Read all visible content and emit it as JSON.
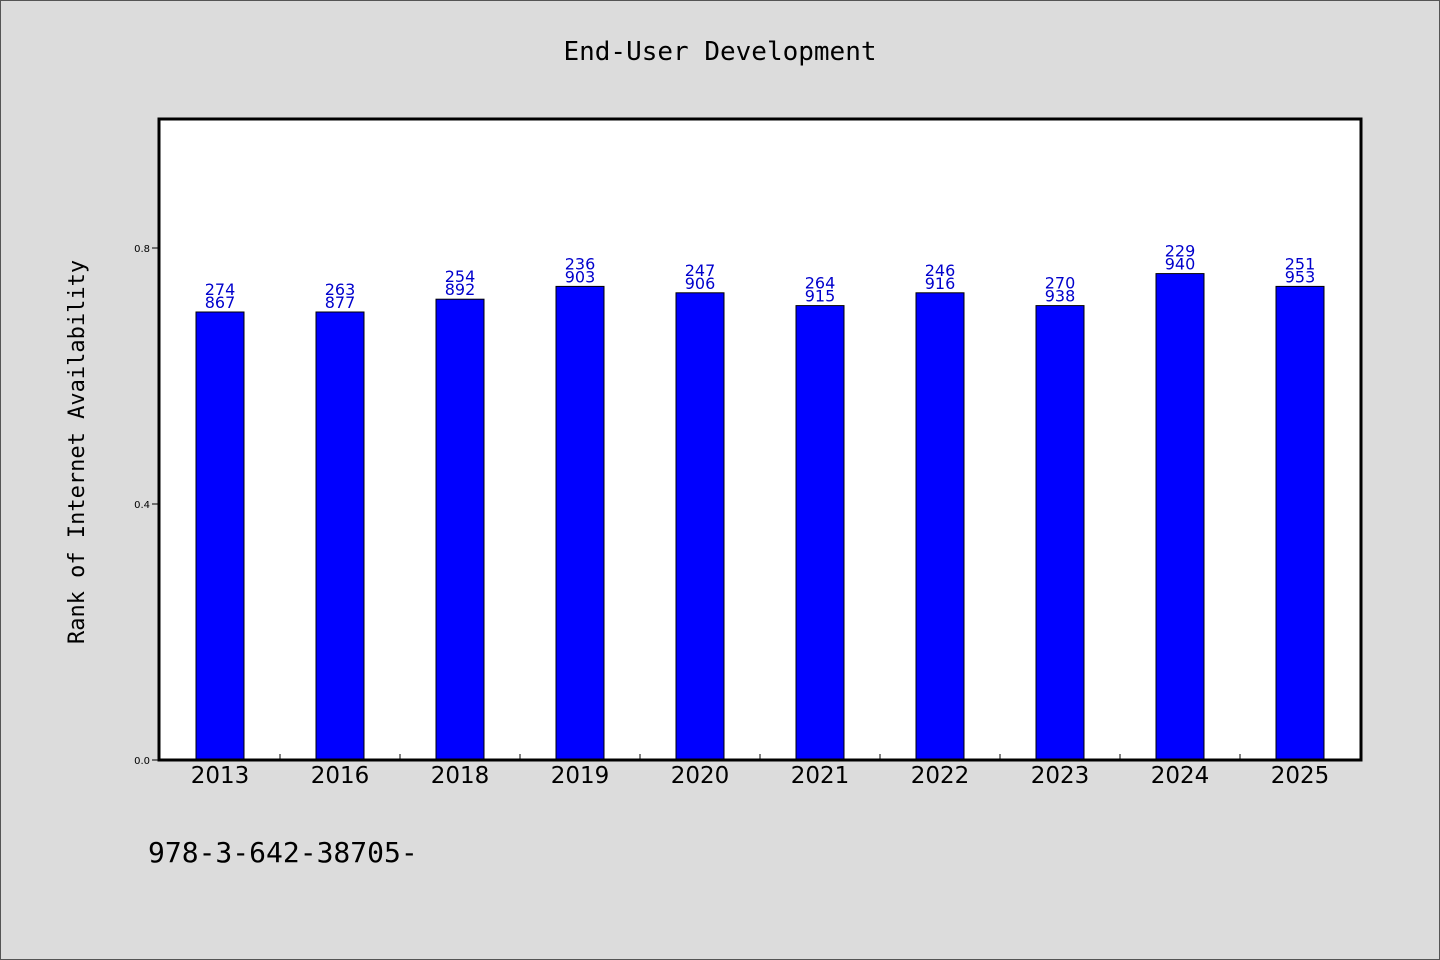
{
  "chart_data": {
    "type": "bar",
    "title": "End-User Development",
    "xlabel": "",
    "ylabel": "Rank of Internet Availability",
    "categories": [
      "2013",
      "2016",
      "2018",
      "2019",
      "2020",
      "2021",
      "2022",
      "2023",
      "2024",
      "2025"
    ],
    "values": [
      0.7,
      0.7,
      0.72,
      0.74,
      0.73,
      0.71,
      0.73,
      0.71,
      0.76,
      0.74
    ],
    "bar_labels": [
      [
        "274",
        "867"
      ],
      [
        "263",
        "877"
      ],
      [
        "254",
        "892"
      ],
      [
        "236",
        "903"
      ],
      [
        "247",
        "906"
      ],
      [
        "264",
        "915"
      ],
      [
        "246",
        "916"
      ],
      [
        "270",
        "938"
      ],
      [
        "229",
        "940"
      ],
      [
        "251",
        "953"
      ]
    ],
    "ylim": [
      0,
      1.0
    ],
    "yticks": [
      "0.0",
      "0.4",
      "0.8"
    ],
    "ytick_values": [
      0.0,
      0.4,
      0.8
    ],
    "grid": false,
    "bar_color": "#0000ff",
    "label_color": "#0000cc",
    "background": "#dcdcdc",
    "plot_background": "#ffffff"
  },
  "footer_text": "978-3-642-38705-"
}
